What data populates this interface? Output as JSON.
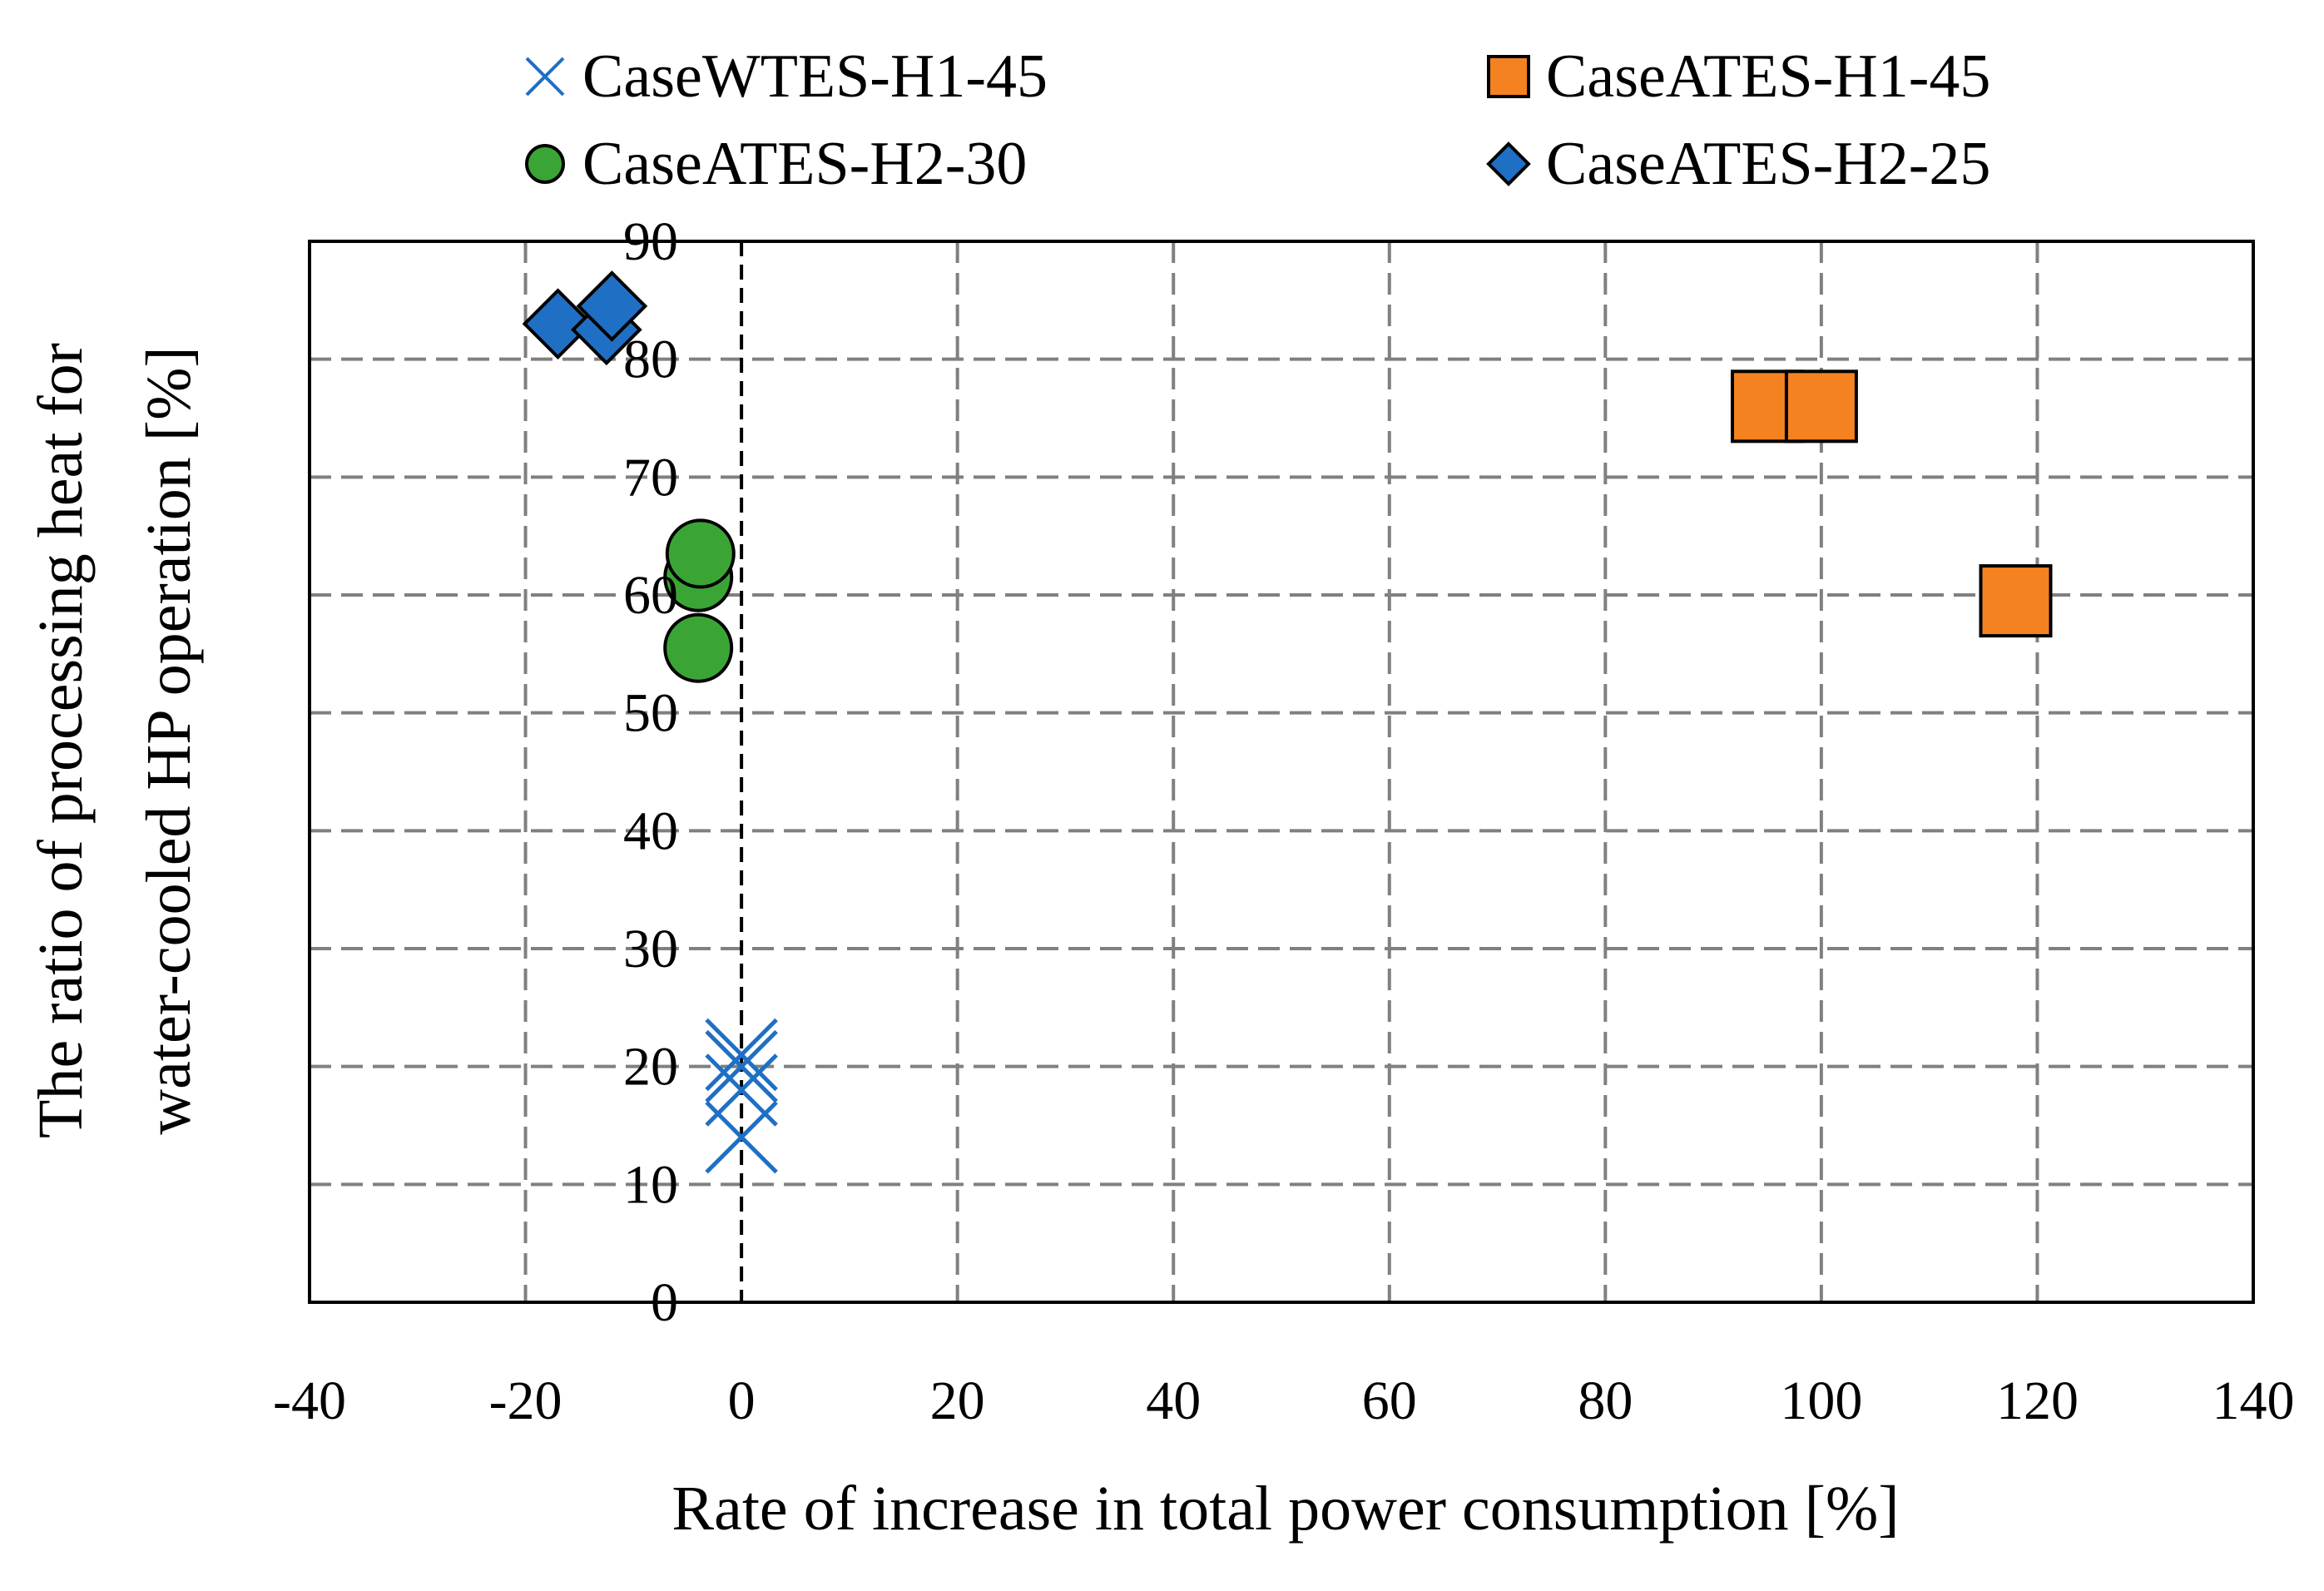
{
  "chart_data": {
    "type": "scatter",
    "xlabel": "Rate of increase in total power consumption [%]",
    "ylabel_lines": [
      "The ratio of processing heat for",
      "water-cooled HP operation [%]"
    ],
    "xlim": [
      -40,
      140
    ],
    "ylim": [
      0,
      90
    ],
    "x_ticks": [
      -40,
      -20,
      0,
      20,
      40,
      60,
      80,
      100,
      120,
      140
    ],
    "y_ticks": [
      0,
      10,
      20,
      30,
      40,
      50,
      60,
      70,
      80,
      90
    ],
    "x_tick_labels": [
      "-40",
      "-20",
      "0",
      "20",
      "40",
      "60",
      "80",
      "100",
      "120",
      "140"
    ],
    "y_tick_labels": [
      "0",
      "10",
      "20",
      "30",
      "40",
      "50",
      "60",
      "70",
      "80",
      "90"
    ],
    "grid": true,
    "grid_style": "dashed",
    "reference_line_x": 0,
    "legend_position": "top",
    "series": [
      {
        "name": "CaseWTES-H1-45",
        "marker": "x",
        "color": "#1f6fc4",
        "points": [
          [
            0,
            14
          ],
          [
            0,
            18
          ],
          [
            0,
            20
          ],
          [
            0,
            21
          ]
        ]
      },
      {
        "name": "CaseATES-H1-45",
        "marker": "square",
        "color": "#f58220",
        "points": [
          [
            95,
            76
          ],
          [
            100,
            76
          ],
          [
            118,
            59.5
          ]
        ]
      },
      {
        "name": "CaseATES-H2-30",
        "marker": "circle",
        "color": "#3aa535",
        "points": [
          [
            -4,
            55.5
          ],
          [
            -4,
            61.5
          ],
          [
            -3.8,
            63.5
          ]
        ]
      },
      {
        "name": "CaseATES-H2-25",
        "marker": "diamond",
        "color": "#1f6fc4",
        "points": [
          [
            -17,
            83
          ],
          [
            -12.5,
            82.5
          ],
          [
            -12,
            84.5
          ]
        ]
      }
    ]
  }
}
